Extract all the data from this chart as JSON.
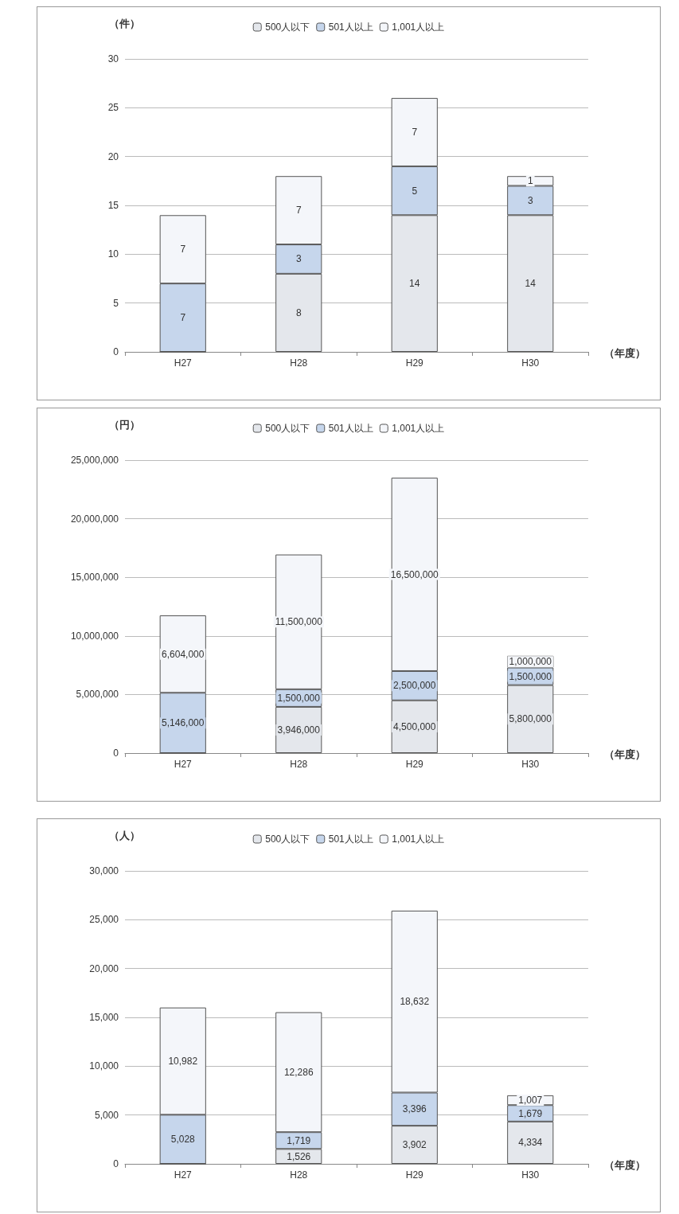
{
  "chart_data": [
    {
      "type": "bar",
      "stacked": true,
      "ylabel": "（件）",
      "xlabel": "（年度）",
      "categories": [
        "H27",
        "H28",
        "H29",
        "H30"
      ],
      "legend": "top",
      "grid": "y",
      "ylim": [
        0,
        30
      ],
      "yticks": [
        0,
        5,
        10,
        15,
        20,
        25,
        30
      ],
      "series": [
        {
          "name": "500人以下",
          "color": "#e4e7ec",
          "values": [
            0,
            8,
            14,
            14
          ],
          "value_labels": [
            null,
            "8",
            "14",
            "14"
          ]
        },
        {
          "name": "501人以上",
          "color": "#c6d6ec",
          "values": [
            7,
            3,
            5,
            3
          ],
          "value_labels": [
            "7",
            "3",
            "5",
            "3"
          ]
        },
        {
          "name": "1,001人以上",
          "color": "#f4f6fa",
          "values": [
            7,
            7,
            7,
            1
          ],
          "value_labels": [
            "7",
            "7",
            "7",
            "1"
          ]
        }
      ]
    },
    {
      "type": "bar",
      "stacked": true,
      "ylabel": "（円）",
      "xlabel": "（年度）",
      "categories": [
        "H27",
        "H28",
        "H29",
        "H30"
      ],
      "legend": "top",
      "grid": "y",
      "ylim": [
        0,
        25000000
      ],
      "yticks": [
        0,
        {
          "value": 5000000,
          "label": "5,000,000"
        },
        {
          "value": 10000000,
          "label": "10,000,000"
        },
        {
          "value": 15000000,
          "label": "15,000,000"
        },
        {
          "value": 20000000,
          "label": "20,000,000"
        },
        {
          "value": 25000000,
          "label": "25,000,000"
        }
      ],
      "series": [
        {
          "name": "500人以下",
          "color": "#e4e7ec",
          "values": [
            0,
            3946000,
            4500000,
            5800000
          ],
          "value_labels": [
            null,
            "3,946,000",
            "4,500,000",
            "5,800,000"
          ]
        },
        {
          "name": "501人以上",
          "color": "#c6d6ec",
          "values": [
            5146000,
            1500000,
            2500000,
            1500000
          ],
          "value_labels": [
            "5,146,000",
            "1,500,000",
            "2,500,000",
            "1,500,000"
          ]
        },
        {
          "name": "1,001人以上",
          "color": "#f4f6fa",
          "values": [
            6604000,
            11500000,
            16500000,
            1000000
          ],
          "value_labels": [
            "6,604,000",
            "11,500,000",
            "16,500,000",
            "1,000,000"
          ]
        }
      ]
    },
    {
      "type": "bar",
      "stacked": true,
      "ylabel": "（人）",
      "xlabel": "（年度）",
      "categories": [
        "H27",
        "H28",
        "H29",
        "H30"
      ],
      "legend": "top",
      "grid": "y",
      "ylim": [
        0,
        30000
      ],
      "yticks": [
        0,
        {
          "value": 5000,
          "label": "5,000"
        },
        {
          "value": 10000,
          "label": "10,000"
        },
        {
          "value": 15000,
          "label": "15,000"
        },
        {
          "value": 20000,
          "label": "20,000"
        },
        {
          "value": 25000,
          "label": "25,000"
        },
        {
          "value": 30000,
          "label": "30,000"
        }
      ],
      "series": [
        {
          "name": "500人以下",
          "color": "#e4e7ec",
          "values": [
            0,
            1526,
            3902,
            4334
          ],
          "value_labels": [
            null,
            "1,526",
            "3,902",
            "4,334"
          ]
        },
        {
          "name": "501人以上",
          "color": "#c6d6ec",
          "values": [
            5028,
            1719,
            3396,
            1679
          ],
          "value_labels": [
            "5,028",
            "1,719",
            "3,396",
            "1,679"
          ]
        },
        {
          "name": "1,001人以上",
          "color": "#f4f6fa",
          "values": [
            10982,
            12286,
            18632,
            1007
          ],
          "value_labels": [
            "10,982",
            "12,286",
            "18,632",
            "1,007"
          ]
        }
      ]
    }
  ]
}
